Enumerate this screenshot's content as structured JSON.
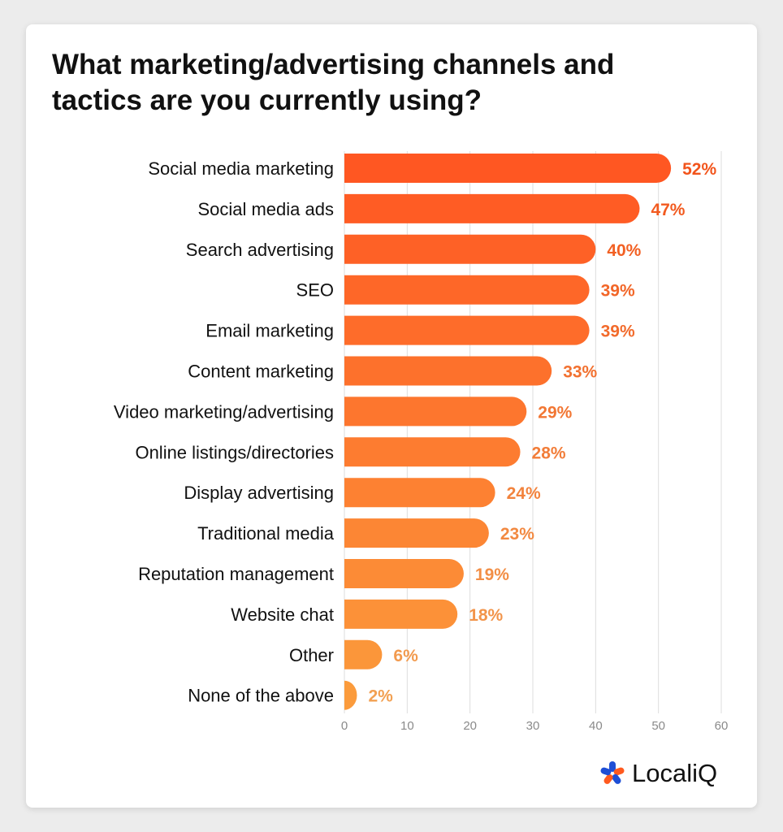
{
  "title": "What marketing/advertising channels and tactics are you currently using?",
  "brand": {
    "name": "LocaliQ",
    "icon": "localiq-asterisk-logo"
  },
  "colors": {
    "bar_start": "#FF5722",
    "bar_end": "#FB9B3C",
    "label_start": "#F2541B",
    "label_end": "#F2A052",
    "grid": "#DDDDDD",
    "logo_blue": "#1E4FD6",
    "logo_orange": "#FF5A1F"
  },
  "chart_data": {
    "type": "bar",
    "orientation": "horizontal",
    "categories": [
      "Social media marketing",
      "Social media ads",
      "Search advertising",
      "SEO",
      "Email marketing",
      "Content marketing",
      "Video marketing/advertising",
      "Online listings/directories",
      "Display advertising",
      "Traditional media",
      "Reputation management",
      "Website chat",
      "Other",
      "None of the above"
    ],
    "values": [
      52,
      47,
      40,
      39,
      39,
      33,
      29,
      28,
      24,
      23,
      19,
      18,
      6,
      2
    ],
    "value_labels": [
      "52%",
      "47%",
      "40%",
      "39%",
      "39%",
      "33%",
      "29%",
      "28%",
      "24%",
      "23%",
      "19%",
      "18%",
      "6%",
      "2%"
    ],
    "xlim": [
      0,
      60
    ],
    "xticks": [
      0,
      10,
      20,
      30,
      40,
      50,
      60
    ],
    "xlabel": "",
    "ylabel": "",
    "grid": true
  }
}
